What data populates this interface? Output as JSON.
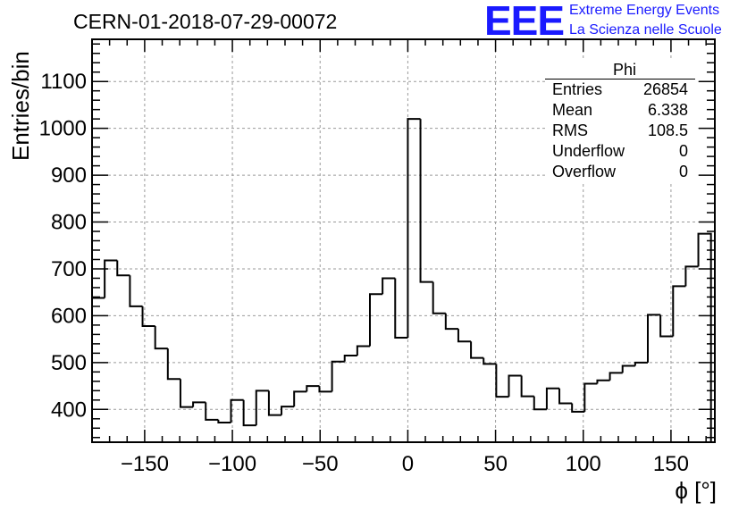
{
  "header": {
    "run_title": "CERN-01-2018-07-29-00072",
    "logo_mark": "EEE",
    "logo_line1": "Extreme Energy Events",
    "logo_line2": "La Scienza nelle Scuole"
  },
  "stats_box": {
    "title": "Phi",
    "rows": [
      {
        "label": "Entries",
        "value": "26854"
      },
      {
        "label": "Mean",
        "value": "6.338"
      },
      {
        "label": "RMS",
        "value": "108.5"
      },
      {
        "label": "Underflow",
        "value": "0"
      },
      {
        "label": "Overflow",
        "value": "0"
      }
    ]
  },
  "colors": {
    "line": "#000000",
    "grid": "#9a9a9a",
    "logo": "#1a1aff"
  },
  "chart_data": {
    "type": "histogram",
    "title": "CERN-01-2018-07-29-00072",
    "xlabel": "ϕ [°]",
    "ylabel": "Entries/bin",
    "xlim": [
      -180,
      175
    ],
    "ylim": [
      330,
      1190
    ],
    "bin_width": 7.2,
    "bin_edges_start": -180,
    "x_ticks": [
      -150,
      -100,
      -50,
      0,
      50,
      100,
      150
    ],
    "x_tick_labels": [
      "−150",
      "−100",
      "−50",
      "0",
      "50",
      "100",
      "150"
    ],
    "y_ticks": [
      400,
      500,
      600,
      700,
      800,
      900,
      1000,
      1100
    ],
    "y_tick_labels": [
      "400",
      "500",
      "600",
      "700",
      "800",
      "900",
      "1000",
      "1100"
    ],
    "grid": true,
    "legend": "top-right",
    "values": [
      638,
      718,
      686,
      620,
      578,
      530,
      465,
      405,
      415,
      378,
      372,
      420,
      366,
      440,
      388,
      406,
      438,
      450,
      438,
      502,
      515,
      535,
      646,
      680,
      553,
      1020,
      672,
      605,
      572,
      545,
      510,
      497,
      427,
      472,
      428,
      400,
      445,
      413,
      395,
      455,
      462,
      478,
      493,
      500,
      602,
      556,
      663,
      705,
      775
    ]
  }
}
